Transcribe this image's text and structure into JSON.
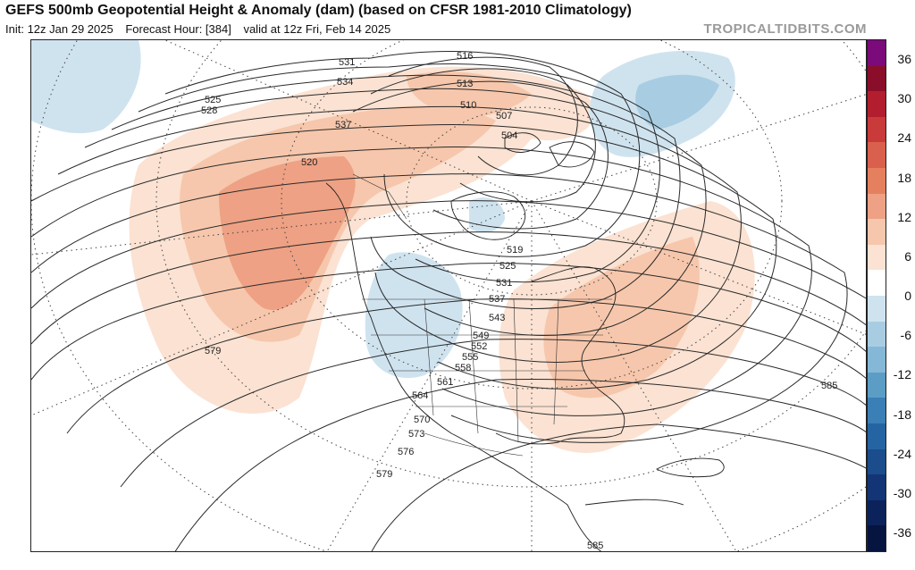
{
  "header": {
    "title": "GEFS 500mb Geopotential Height & Anomaly (dam) (based on CFSR 1981-2010 Climatology)",
    "init": "Init: 12z Jan 29 2025",
    "forecast_hour": "Forecast Hour: [384]",
    "valid": "valid at 12z Fri, Feb 14 2025",
    "credit": "TROPICALTIDBITS.COM"
  },
  "colorbar": {
    "labels": [
      "36",
      "30",
      "24",
      "18",
      "12",
      "6",
      "0",
      "-6",
      "-12",
      "-18",
      "-24",
      "-30",
      "-36"
    ],
    "colors": [
      "#7b0a7b",
      "#8a0e2a",
      "#b31e2e",
      "#c93a3a",
      "#d9604c",
      "#e5805f",
      "#eea184",
      "#f6c7ac",
      "#fbe2d2",
      "#ffffff",
      "#cfe3ef",
      "#a8cde2",
      "#84b8d6",
      "#5c9dc6",
      "#3a7fb5",
      "#2564a3",
      "#1b4c8c",
      "#133575",
      "#0b225a",
      "#061440"
    ]
  },
  "map": {
    "contour_labels": [
      "516",
      "513",
      "510",
      "507",
      "504",
      "531",
      "534",
      "537",
      "525",
      "528",
      "520",
      "519",
      "525",
      "531",
      "537",
      "543",
      "549",
      "552",
      "555",
      "558",
      "561",
      "564",
      "570",
      "573",
      "576",
      "579",
      "579",
      "585",
      "585"
    ]
  }
}
